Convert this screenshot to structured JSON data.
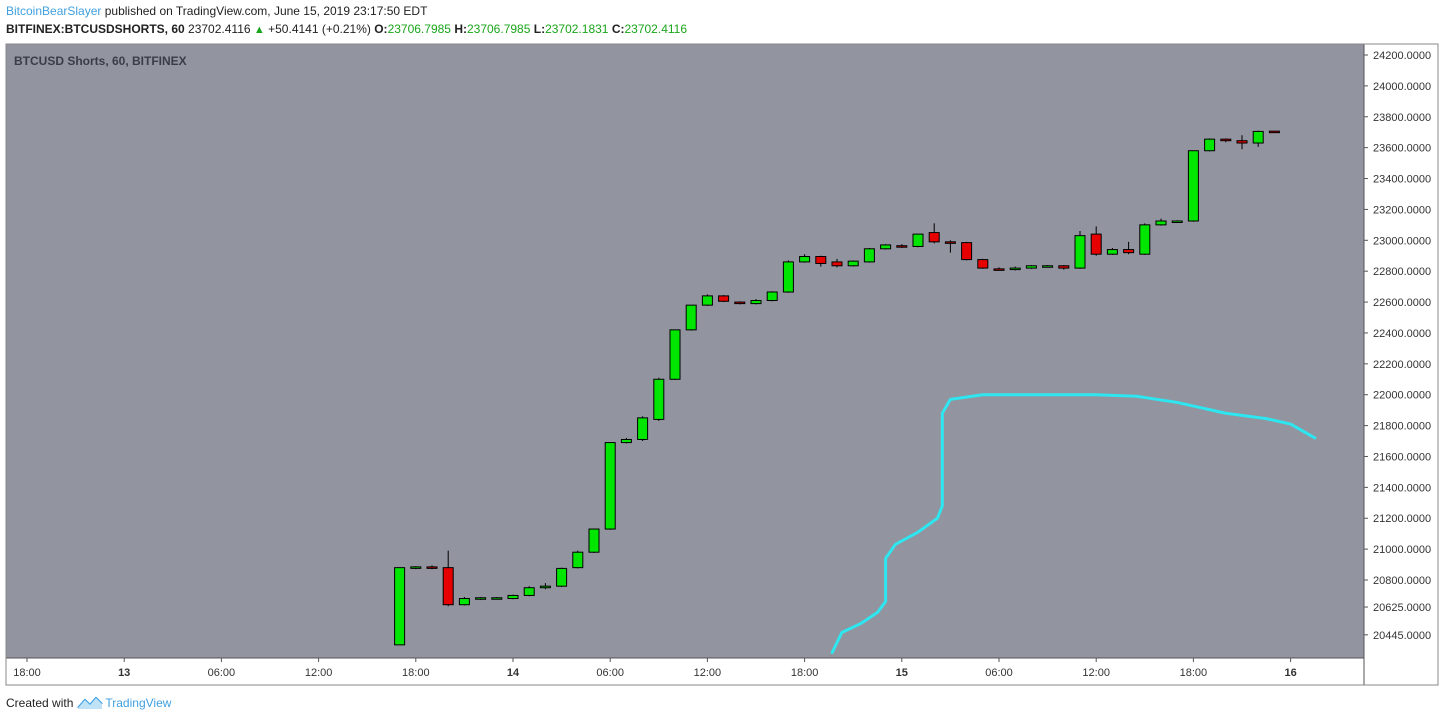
{
  "header": {
    "author": "BitcoinBearSlayer",
    "published_text": "published on TradingView.com, June 15, 2019 23:17:50 EDT",
    "symbol": "BITFINEX:BTCUSDSHORTS, 60",
    "last": "23702.4116",
    "change": "+50.4141 (+0.21%)",
    "o_label": "O:",
    "o": "23706.7985",
    "h_label": "H:",
    "h": "23706.7985",
    "l_label": "L:",
    "l": "23702.1831",
    "c_label": "C:",
    "c": "23702.4116"
  },
  "footer": {
    "created_with": "Created with",
    "brand": "TradingView"
  },
  "colors": {
    "bg": "#92949f",
    "up": "#00e600",
    "down": "#e60000",
    "line": "#2ee6f0",
    "axis_bg": "#ffffff"
  },
  "chart_data": {
    "type": "candlestick",
    "title": "BTCUSD Shorts, 60, BITFINEX",
    "y_ticks": [
      20445,
      20625,
      20800,
      21000,
      21200,
      21400,
      21600,
      21800,
      22000,
      22200,
      22400,
      22600,
      22800,
      23000,
      23200,
      23400,
      23600,
      23800,
      24000,
      24200
    ],
    "y_tick_labels": [
      "20445.0000",
      "20625.0000",
      "20800.0000",
      "21000.0000",
      "21200.0000",
      "21400.0000",
      "21600.0000",
      "21800.0000",
      "22000.0000",
      "22200.0000",
      "22400.0000",
      "22600.0000",
      "22800.0000",
      "23000.0000",
      "23200.0000",
      "23400.0000",
      "23600.0000",
      "23800.0000",
      "24000.0000",
      "24200.0000"
    ],
    "x_ticks": [
      {
        "h": -30,
        "label": "18:00",
        "bold": false
      },
      {
        "h": -24,
        "label": "13",
        "bold": true
      },
      {
        "h": -18,
        "label": "06:00",
        "bold": false
      },
      {
        "h": -12,
        "label": "12:00",
        "bold": false
      },
      {
        "h": -6,
        "label": "18:00",
        "bold": false
      },
      {
        "h": 0,
        "label": "14",
        "bold": true
      },
      {
        "h": 6,
        "label": "06:00",
        "bold": false
      },
      {
        "h": 12,
        "label": "12:00",
        "bold": false
      },
      {
        "h": 18,
        "label": "18:00",
        "bold": false
      },
      {
        "h": 24,
        "label": "15",
        "bold": true
      },
      {
        "h": 30,
        "label": "06:00",
        "bold": false
      },
      {
        "h": 36,
        "label": "12:00",
        "bold": false
      },
      {
        "h": 42,
        "label": "18:00",
        "bold": false
      },
      {
        "h": 48,
        "label": "16",
        "bold": true
      }
    ],
    "candles": [
      {
        "h": -7,
        "o": 20380,
        "hi": 20880,
        "lo": 20380,
        "c": 20880
      },
      {
        "h": -6,
        "o": 20880,
        "hi": 20890,
        "lo": 20870,
        "c": 20885
      },
      {
        "h": -5,
        "o": 20885,
        "hi": 20895,
        "lo": 20870,
        "c": 20880
      },
      {
        "h": -4,
        "o": 20880,
        "hi": 20990,
        "lo": 20630,
        "c": 20640
      },
      {
        "h": -3,
        "o": 20640,
        "hi": 20690,
        "lo": 20635,
        "c": 20680
      },
      {
        "h": -2,
        "o": 20680,
        "hi": 20690,
        "lo": 20670,
        "c": 20685
      },
      {
        "h": -1,
        "o": 20680,
        "hi": 20690,
        "lo": 20675,
        "c": 20685
      },
      {
        "h": 0,
        "o": 20680,
        "hi": 20705,
        "lo": 20675,
        "c": 20700
      },
      {
        "h": 1,
        "o": 20700,
        "hi": 20760,
        "lo": 20695,
        "c": 20750
      },
      {
        "h": 2,
        "o": 20750,
        "hi": 20780,
        "lo": 20740,
        "c": 20760
      },
      {
        "h": 3,
        "o": 20760,
        "hi": 20880,
        "lo": 20755,
        "c": 20875
      },
      {
        "h": 4,
        "o": 20880,
        "hi": 20990,
        "lo": 20875,
        "c": 20980
      },
      {
        "h": 5,
        "o": 20980,
        "hi": 21130,
        "lo": 20975,
        "c": 21130
      },
      {
        "h": 6,
        "o": 21130,
        "hi": 21690,
        "lo": 21125,
        "c": 21690
      },
      {
        "h": 7,
        "o": 21690,
        "hi": 21720,
        "lo": 21685,
        "c": 21710
      },
      {
        "h": 8,
        "o": 21710,
        "hi": 21860,
        "lo": 21700,
        "c": 21850
      },
      {
        "h": 9,
        "o": 21840,
        "hi": 22110,
        "lo": 21830,
        "c": 22100
      },
      {
        "h": 10,
        "o": 22100,
        "hi": 22420,
        "lo": 22095,
        "c": 22420
      },
      {
        "h": 11,
        "o": 22420,
        "hi": 22580,
        "lo": 22415,
        "c": 22580
      },
      {
        "h": 12,
        "o": 22580,
        "hi": 22650,
        "lo": 22575,
        "c": 22640
      },
      {
        "h": 13,
        "o": 22640,
        "hi": 22645,
        "lo": 22600,
        "c": 22605
      },
      {
        "h": 14,
        "o": 22600,
        "hi": 22605,
        "lo": 22585,
        "c": 22590
      },
      {
        "h": 15,
        "o": 22590,
        "hi": 22620,
        "lo": 22585,
        "c": 22610
      },
      {
        "h": 16,
        "o": 22610,
        "hi": 22670,
        "lo": 22605,
        "c": 22665
      },
      {
        "h": 17,
        "o": 22665,
        "hi": 22870,
        "lo": 22660,
        "c": 22860
      },
      {
        "h": 18,
        "o": 22860,
        "hi": 22910,
        "lo": 22855,
        "c": 22895
      },
      {
        "h": 19,
        "o": 22895,
        "hi": 22900,
        "lo": 22830,
        "c": 22850
      },
      {
        "h": 20,
        "o": 22860,
        "hi": 22880,
        "lo": 22825,
        "c": 22835
      },
      {
        "h": 21,
        "o": 22835,
        "hi": 22870,
        "lo": 22830,
        "c": 22865
      },
      {
        "h": 22,
        "o": 22860,
        "hi": 22950,
        "lo": 22855,
        "c": 22945
      },
      {
        "h": 23,
        "o": 22945,
        "hi": 22975,
        "lo": 22940,
        "c": 22970
      },
      {
        "h": 24,
        "o": 22965,
        "hi": 22975,
        "lo": 22950,
        "c": 22960
      },
      {
        "h": 25,
        "o": 22960,
        "hi": 23040,
        "lo": 22955,
        "c": 23040
      },
      {
        "h": 26,
        "o": 23050,
        "hi": 23110,
        "lo": 22980,
        "c": 22990
      },
      {
        "h": 27,
        "o": 22990,
        "hi": 23000,
        "lo": 22920,
        "c": 22985
      },
      {
        "h": 28,
        "o": 22985,
        "hi": 22990,
        "lo": 22870,
        "c": 22875
      },
      {
        "h": 29,
        "o": 22875,
        "hi": 22880,
        "lo": 22815,
        "c": 22820
      },
      {
        "h": 30,
        "o": 22815,
        "hi": 22825,
        "lo": 22805,
        "c": 22810
      },
      {
        "h": 31,
        "o": 22815,
        "hi": 22830,
        "lo": 22805,
        "c": 22820
      },
      {
        "h": 32,
        "o": 22820,
        "hi": 22840,
        "lo": 22815,
        "c": 22835
      },
      {
        "h": 33,
        "o": 22830,
        "hi": 22840,
        "lo": 22825,
        "c": 22835
      },
      {
        "h": 34,
        "o": 22835,
        "hi": 22840,
        "lo": 22810,
        "c": 22820
      },
      {
        "h": 35,
        "o": 22820,
        "hi": 23060,
        "lo": 22815,
        "c": 23030
      },
      {
        "h": 36,
        "o": 23040,
        "hi": 23090,
        "lo": 22900,
        "c": 22910
      },
      {
        "h": 37,
        "o": 22910,
        "hi": 22950,
        "lo": 22905,
        "c": 22940
      },
      {
        "h": 38,
        "o": 22940,
        "hi": 22990,
        "lo": 22910,
        "c": 22920
      },
      {
        "h": 39,
        "o": 22910,
        "hi": 23110,
        "lo": 22905,
        "c": 23100
      },
      {
        "h": 40,
        "o": 23100,
        "hi": 23140,
        "lo": 23095,
        "c": 23125
      },
      {
        "h": 41,
        "o": 23120,
        "hi": 23130,
        "lo": 23115,
        "c": 23125
      },
      {
        "h": 42,
        "o": 23125,
        "hi": 23580,
        "lo": 23120,
        "c": 23580
      },
      {
        "h": 43,
        "o": 23580,
        "hi": 23660,
        "lo": 23575,
        "c": 23655
      },
      {
        "h": 44,
        "o": 23655,
        "hi": 23660,
        "lo": 23635,
        "c": 23645
      },
      {
        "h": 45,
        "o": 23645,
        "hi": 23680,
        "lo": 23590,
        "c": 23630
      },
      {
        "h": 46,
        "o": 23630,
        "hi": 23710,
        "lo": 23605,
        "c": 23705
      },
      {
        "h": 47,
        "o": 23706.7985,
        "hi": 23706.7985,
        "lo": 23702.1831,
        "c": 23702.4116
      }
    ],
    "overlay_line": [
      {
        "h": 19.7,
        "v": 20330
      },
      {
        "h": 20.3,
        "v": 20460
      },
      {
        "h": 21.5,
        "v": 20520
      },
      {
        "h": 22.5,
        "v": 20590
      },
      {
        "h": 23.0,
        "v": 20660
      },
      {
        "h": 23.0,
        "v": 20940
      },
      {
        "h": 23.6,
        "v": 21030
      },
      {
        "h": 25.0,
        "v": 21110
      },
      {
        "h": 26.2,
        "v": 21200
      },
      {
        "h": 26.5,
        "v": 21280
      },
      {
        "h": 26.5,
        "v": 21880
      },
      {
        "h": 27.0,
        "v": 21970
      },
      {
        "h": 29.0,
        "v": 22000
      },
      {
        "h": 31.0,
        "v": 22000
      },
      {
        "h": 36.0,
        "v": 22000
      },
      {
        "h": 38.5,
        "v": 21990
      },
      {
        "h": 41.0,
        "v": 21950
      },
      {
        "h": 44.0,
        "v": 21880
      },
      {
        "h": 46.5,
        "v": 21845
      },
      {
        "h": 48.0,
        "v": 21810
      },
      {
        "h": 49.5,
        "v": 21720
      }
    ]
  }
}
